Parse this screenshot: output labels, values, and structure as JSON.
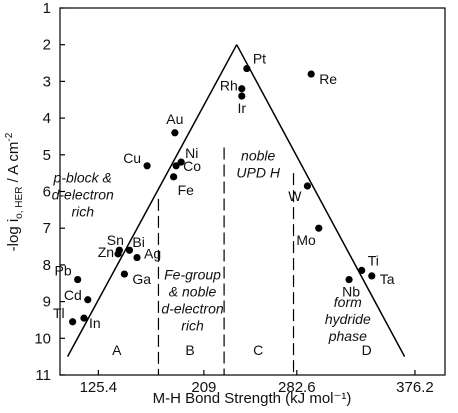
{
  "chart_data": {
    "type": "scatter",
    "xlabel": "M-H Bond Strength (kJ mol⁻¹)",
    "ylabel": "-log i₀, HER / A cm⁻²",
    "ylabel_parts": {
      "pre": "-log i",
      "sub": "o, HER",
      "post": " / A cm",
      "sup": "-2"
    },
    "xlim": [
      95,
      400
    ],
    "ylim": [
      11,
      1
    ],
    "y_inverted": true,
    "xticks": [
      125.4,
      209,
      282.6,
      376.2
    ],
    "xtick_labels": [
      "125.4",
      "209",
      "282.6",
      "376.2"
    ],
    "yticks": [
      1,
      2,
      3,
      4,
      5,
      6,
      7,
      8,
      9,
      10,
      11
    ],
    "ytick_labels": [
      "1",
      "2",
      "3",
      "4",
      "5",
      "6",
      "7",
      "8",
      "9",
      "10",
      "11"
    ],
    "points": [
      {
        "label": "Pt",
        "x": 243,
        "y": 2.65
      },
      {
        "label": "Re",
        "x": 294,
        "y": 2.8
      },
      {
        "label": "Rh",
        "x": 239,
        "y": 3.2
      },
      {
        "label": "Ir",
        "x": 239,
        "y": 3.4
      },
      {
        "label": "Au",
        "x": 186,
        "y": 4.4
      },
      {
        "label": "Ni",
        "x": 191,
        "y": 5.2
      },
      {
        "label": "Cu",
        "x": 164,
        "y": 5.3
      },
      {
        "label": "Co",
        "x": 187,
        "y": 5.3
      },
      {
        "label": "Fe",
        "x": 185,
        "y": 5.6
      },
      {
        "label": "W",
        "x": 291,
        "y": 5.85
      },
      {
        "label": "Mo",
        "x": 300,
        "y": 7.0
      },
      {
        "label": "Sn",
        "x": 142,
        "y": 7.6
      },
      {
        "label": "Bi",
        "x": 150,
        "y": 7.6
      },
      {
        "label": "Zn",
        "x": 141,
        "y": 7.7
      },
      {
        "label": "Ag",
        "x": 156,
        "y": 7.8
      },
      {
        "label": "Pb",
        "x": 109,
        "y": 8.4
      },
      {
        "label": "Ga",
        "x": 146,
        "y": 8.25
      },
      {
        "label": "Ti",
        "x": 334,
        "y": 8.15
      },
      {
        "label": "Ta",
        "x": 342,
        "y": 8.3
      },
      {
        "label": "Nb",
        "x": 324,
        "y": 8.4
      },
      {
        "label": "Cd",
        "x": 117,
        "y": 8.95
      },
      {
        "label": "Tl",
        "x": 105,
        "y": 9.55
      },
      {
        "label": "In",
        "x": 114,
        "y": 9.45
      }
    ],
    "volcano_lines": [
      {
        "from": {
          "x": 101,
          "y": 10.5
        },
        "to": {
          "x": 235,
          "y": 2.0
        }
      },
      {
        "from": {
          "x": 235,
          "y": 2.0
        },
        "to": {
          "x": 368,
          "y": 10.5
        }
      }
    ],
    "region_dividers": [
      {
        "x": 173,
        "y_top": 6.2,
        "y_bottom": 11
      },
      {
        "x": 225,
        "y_top": 4.8,
        "y_bottom": 11
      },
      {
        "x": 280,
        "y_top": 5.5,
        "y_bottom": 11
      }
    ],
    "region_letters": [
      {
        "text": "A",
        "x": 140,
        "y": 10.45
      },
      {
        "text": "B",
        "x": 198,
        "y": 10.45
      },
      {
        "text": "C",
        "x": 252,
        "y": 10.45
      },
      {
        "text": "D",
        "x": 338,
        "y": 10.45
      }
    ],
    "region_labels": [
      {
        "lines": [
          "p-block &",
          "d-electron",
          "rich"
        ],
        "x": 113,
        "y": 5.75
      },
      {
        "lines": [
          "Fe-group",
          "& noble",
          "d-electron",
          "rich"
        ],
        "x": 200,
        "y": 8.4
      },
      {
        "lines": [
          "noble",
          "UPD H"
        ],
        "x": 252,
        "y": 5.15
      },
      {
        "lines": [
          "form",
          "hydride",
          "phase"
        ],
        "x": 323,
        "y": 9.15
      }
    ]
  }
}
